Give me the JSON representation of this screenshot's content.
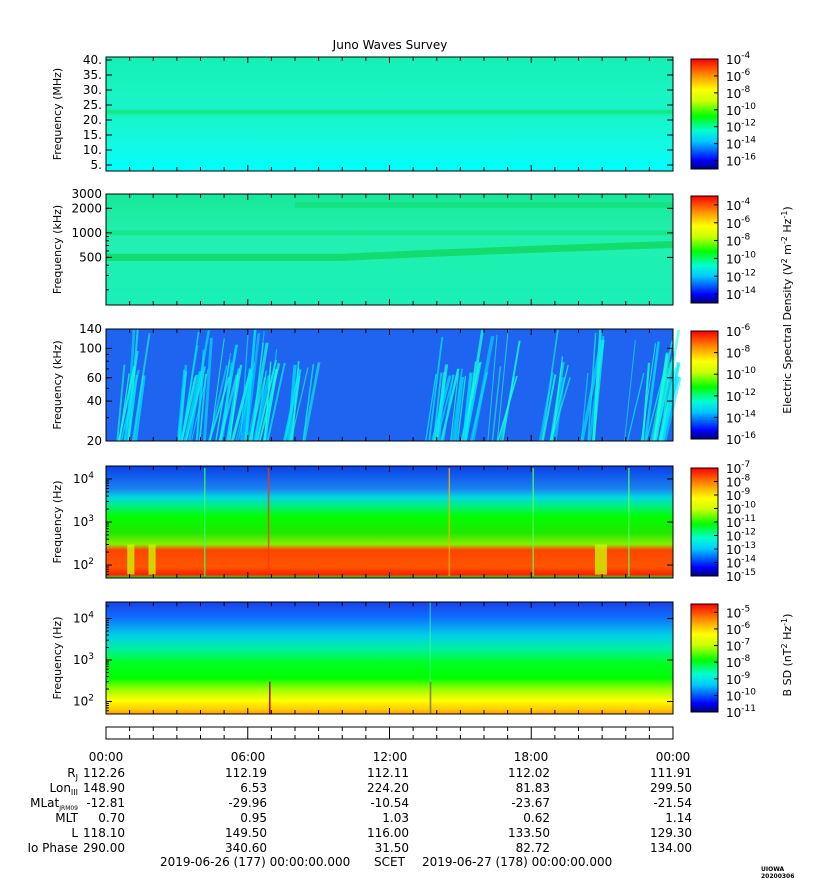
{
  "chart_data": {
    "type": "heatmap",
    "title": "Juno Waves Survey",
    "colormap": [
      "#000080",
      "#0000ff",
      "#00c8ff",
      "#00ffcc",
      "#00ff00",
      "#ccff00",
      "#ffff00",
      "#ffaa00",
      "#ff4400",
      "#ff0000"
    ],
    "panels": [
      {
        "name": "panel-hfr-high",
        "ylabel": "Frequency (MHz)",
        "yscale": "linear",
        "ylim": [
          3,
          41
        ],
        "yticks": [
          {
            "value": 5,
            "label": "5."
          },
          {
            "value": 10,
            "label": "10."
          },
          {
            "value": 15,
            "label": "15."
          },
          {
            "value": 20,
            "label": "20."
          },
          {
            "value": 25,
            "label": "25."
          },
          {
            "value": 30,
            "label": "30."
          },
          {
            "value": 35,
            "label": "35."
          },
          {
            "value": 40,
            "label": "40."
          }
        ],
        "colorbar": {
          "exp_min": -17,
          "exp_max": -4,
          "ticks": [
            "-4",
            "-6",
            "-8",
            "-10",
            "-12",
            "-14",
            "-16"
          ]
        },
        "background": "#19f5cc",
        "features": "narrowband emission near 21 MHz across the full day"
      },
      {
        "name": "panel-hfr-low",
        "ylabel": "Frequency (kHz)",
        "yscale": "log",
        "ylim": [
          130,
          3000
        ],
        "yticks": [
          {
            "value": 500,
            "label": "500"
          },
          {
            "value": 1000,
            "label": "1000"
          },
          {
            "value": 2000,
            "label": "2000"
          },
          {
            "value": 3000,
            "label": "3000"
          }
        ],
        "colorbar": {
          "exp_min": -15,
          "exp_max": -3,
          "ticks": [
            "-4",
            "-6",
            "-8",
            "-10",
            "-12",
            "-14"
          ]
        },
        "background": "#1ef0b0",
        "features": "emission band near 500 kHz rising to ~700 kHz, fainter bands near 1000 and 2200 kHz"
      },
      {
        "name": "panel-lfr-high",
        "ylabel": "Frequency (kHz)",
        "yscale": "log",
        "ylim": [
          20,
          140
        ],
        "yticks": [
          {
            "value": 20,
            "label": "20"
          },
          {
            "value": 40,
            "label": "40"
          },
          {
            "value": 60,
            "label": "60"
          },
          {
            "value": 100,
            "label": "100"
          },
          {
            "value": 140,
            "label": "140"
          }
        ],
        "colorbar": {
          "exp_min": -16,
          "exp_max": -6,
          "ticks": [
            "-6",
            "-8",
            "-10",
            "-12",
            "-14",
            "-16"
          ]
        },
        "background": "#1e64f0",
        "features": "bursty cyan emissions, strongest 03:00-08:00 and near 14:00-16:00 and 22:00-24:00"
      },
      {
        "name": "panel-lfr-low-e",
        "ylabel": "Frequency (Hz)",
        "yscale": "log",
        "ylim": [
          50,
          20000
        ],
        "yticks": [
          {
            "value": 100,
            "label": "10",
            "exp": "2"
          },
          {
            "value": 1000,
            "label": "10",
            "exp": "3"
          },
          {
            "value": 10000,
            "label": "10",
            "exp": "4"
          }
        ],
        "colorbar": {
          "exp_min": -15,
          "exp_max": -7,
          "ticks": [
            "-7",
            "-8",
            "-9",
            "-10",
            "-11",
            "-12",
            "-13",
            "-14",
            "-15"
          ]
        },
        "background": "#00ff00",
        "features": "intense emission 100-300 Hz, broadband green to ~3 kHz, blue above"
      },
      {
        "name": "panel-lfr-low-b",
        "ylabel": "Frequency (Hz)",
        "yscale": "log",
        "ylim": [
          50,
          25000
        ],
        "yticks": [
          {
            "value": 100,
            "label": "10",
            "exp": "2"
          },
          {
            "value": 1000,
            "label": "10",
            "exp": "3"
          },
          {
            "value": 10000,
            "label": "10",
            "exp": "4"
          }
        ],
        "colorbar": {
          "exp_min": -11,
          "exp_max": -4.5,
          "ticks": [
            "-5",
            "-6",
            "-7",
            "-8",
            "-9",
            "-10",
            "-11"
          ],
          "label": "B SD (nT² Hz⁻¹)"
        },
        "background": "#00ff00",
        "features": "yellow below ~150 Hz, green to ~1 kHz, blue above"
      }
    ],
    "shared_colorbar_label": "Electric Spectral Density (V² m⁻² Hz⁻¹)",
    "x": {
      "range_hours": [
        0,
        24
      ],
      "tick_labels": [
        "00:00",
        "06:00",
        "12:00",
        "18:00",
        "00:00"
      ]
    },
    "ephemeris": [
      {
        "label": "R",
        "sub": "J",
        "values": [
          "112.26",
          "112.19",
          "112.11",
          "112.02",
          "111.91"
        ]
      },
      {
        "label": "Lon",
        "sub": "III",
        "values": [
          "148.90",
          "6.53",
          "224.20",
          "81.83",
          "299.50"
        ]
      },
      {
        "label": "MLat",
        "sub": "JRM09",
        "values": [
          "-12.81",
          "-29.96",
          "-10.54",
          "-23.67",
          "-21.54"
        ]
      },
      {
        "label": "MLT",
        "sub": "",
        "values": [
          "0.70",
          "0.95",
          "1.03",
          "0.62",
          "1.14"
        ]
      },
      {
        "label": "L",
        "sub": "",
        "values": [
          "118.10",
          "149.50",
          "116.00",
          "133.50",
          "129.30"
        ]
      },
      {
        "label": "Io Phase",
        "sub": "",
        "values": [
          "290.00",
          "340.60",
          "31.50",
          "82.72",
          "134.00"
        ]
      }
    ],
    "scet": {
      "start": "2019-06-26 (177) 00:00:00.000",
      "label": "SCET",
      "end": "2019-06-27 (178) 00:00:00.000"
    },
    "stamp": "UIOWA 20200306"
  }
}
